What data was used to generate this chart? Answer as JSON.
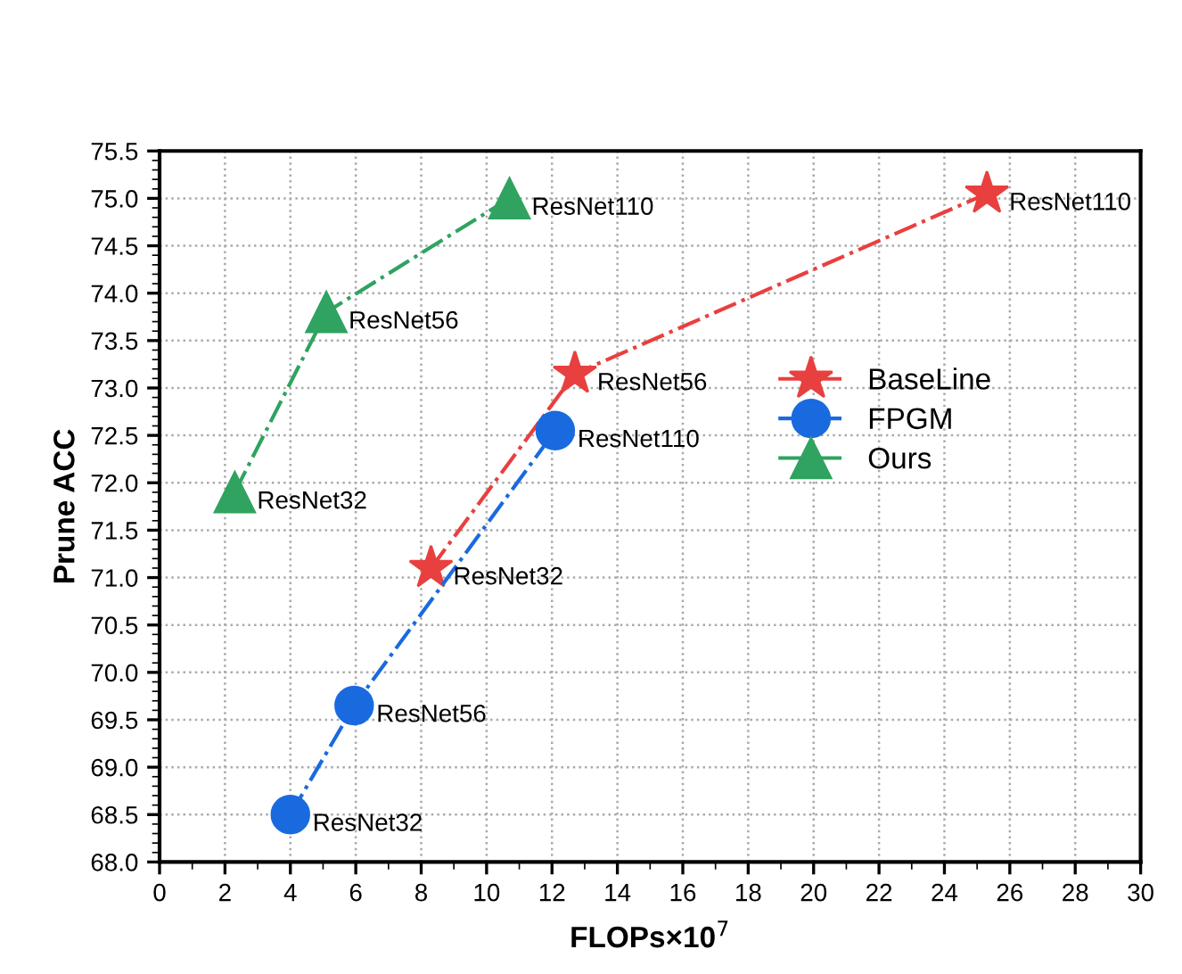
{
  "chart_data": {
    "type": "line",
    "xlabel": "FLOPs×10$^{7}$",
    "ylabel": "Prune ACC",
    "xlim": [
      0,
      30
    ],
    "xticks": [
      0,
      2,
      4,
      6,
      8,
      10,
      12,
      14,
      16,
      18,
      20,
      22,
      24,
      26,
      28,
      30
    ],
    "ylim": [
      68.0,
      75.5
    ],
    "yticks": [
      {
        "value": 68.0,
        "label": "68.0"
      },
      {
        "value": 68.5,
        "label": "68.5"
      },
      {
        "value": 69.0,
        "label": "69.0"
      },
      {
        "value": 69.5,
        "label": "69.5"
      },
      {
        "value": 70.0,
        "label": "70.0"
      },
      {
        "value": 70.5,
        "label": "70.5"
      },
      {
        "value": 71.0,
        "label": "71.0"
      },
      {
        "value": 71.5,
        "label": "71.5"
      },
      {
        "value": 72.0,
        "label": "72.0"
      },
      {
        "value": 72.5,
        "label": "72.5"
      },
      {
        "value": 73.0,
        "label": "73.0"
      },
      {
        "value": 73.5,
        "label": "73.5"
      },
      {
        "value": 74.0,
        "label": "74.0"
      },
      {
        "value": 74.5,
        "label": "74.5"
      },
      {
        "value": 75.0,
        "label": "75.0"
      },
      {
        "value": 75.5,
        "label": "75.5"
      }
    ],
    "grid": true,
    "legend": "right",
    "line_style": "dashdot",
    "series": [
      {
        "name": "BaseLine",
        "color": "#e8403f",
        "marker": "star",
        "x": [
          8.3,
          12.7,
          25.3
        ],
        "values": [
          71.1,
          73.15,
          75.05
        ]
      },
      {
        "name": "FPGM",
        "color": "#1a6adf",
        "marker": "circle",
        "x": [
          4.0,
          5.95,
          12.1
        ],
        "values": [
          68.5,
          69.65,
          72.55
        ]
      },
      {
        "name": "Ours",
        "color": "#2fa35f",
        "marker": "triangle",
        "x": [
          2.3,
          5.1,
          10.7
        ],
        "values": [
          71.9,
          73.8,
          75.0
        ]
      }
    ],
    "annotations": [
      {
        "text": "ResNet32",
        "x": 8.3,
        "y": 71.1
      },
      {
        "text": "ResNet56",
        "x": 12.7,
        "y": 73.15
      },
      {
        "text": "ResNet110",
        "x": 25.3,
        "y": 75.05
      },
      {
        "text": "ResNet32",
        "x": 4.0,
        "y": 68.5
      },
      {
        "text": "ResNet56",
        "x": 5.95,
        "y": 69.65
      },
      {
        "text": "ResNet110",
        "x": 12.1,
        "y": 72.55
      },
      {
        "text": "ResNet32",
        "x": 2.3,
        "y": 71.9
      },
      {
        "text": "ResNet56",
        "x": 5.1,
        "y": 73.8
      },
      {
        "text": "ResNet110",
        "x": 10.7,
        "y": 75.0
      }
    ]
  }
}
